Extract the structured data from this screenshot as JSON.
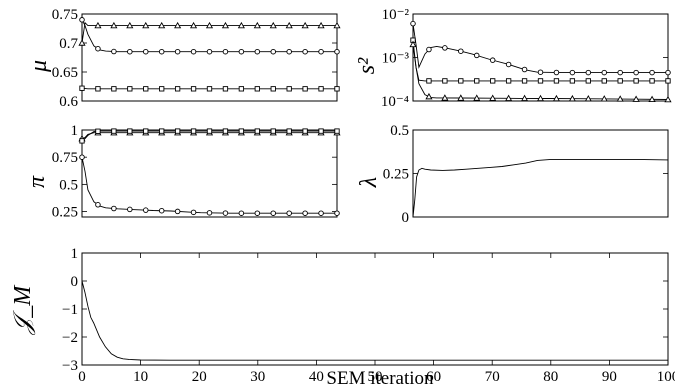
{
  "chart_data": [
    {
      "type": "line",
      "panel": "mu",
      "ylabel": "μ",
      "x_range": [
        0,
        43
      ],
      "ylim": [
        0.6,
        0.75
      ],
      "yticks": [
        0.6,
        0.65,
        0.7,
        0.75
      ],
      "ytick_labels": [
        "0.6",
        "0.65",
        "0.7",
        "0.75"
      ],
      "series": [
        {
          "marker": "triangle",
          "x": [
            0,
            0.5,
            1,
            2,
            4,
            7,
            10,
            15,
            20,
            25,
            30,
            35,
            40,
            43
          ],
          "y": [
            0.7,
            0.735,
            0.73,
            0.73,
            0.73,
            0.73,
            0.73,
            0.73,
            0.73,
            0.73,
            0.73,
            0.73,
            0.73,
            0.73
          ]
        },
        {
          "marker": "circle",
          "x": [
            0,
            0.5,
            1,
            2,
            3,
            4,
            6,
            8,
            10,
            15,
            20,
            25,
            30,
            35,
            40,
            43
          ],
          "y": [
            0.74,
            0.73,
            0.715,
            0.695,
            0.688,
            0.686,
            0.685,
            0.685,
            0.685,
            0.685,
            0.685,
            0.685,
            0.685,
            0.685,
            0.685,
            0.685
          ]
        },
        {
          "marker": "square",
          "x": [
            0,
            1,
            5,
            10,
            15,
            20,
            25,
            30,
            35,
            40,
            43
          ],
          "y": [
            0.622,
            0.621,
            0.621,
            0.621,
            0.621,
            0.621,
            0.621,
            0.621,
            0.621,
            0.621,
            0.621
          ]
        }
      ]
    },
    {
      "type": "line",
      "panel": "s2",
      "ylabel": "s²",
      "yscale": "log",
      "x_range": [
        57,
        100
      ],
      "ylim": [
        0.0001,
        0.01
      ],
      "yticks": [
        0.0001,
        0.001,
        0.01
      ],
      "ytick_labels": [
        "10⁻⁴",
        "10⁻³",
        "10⁻²"
      ],
      "series": [
        {
          "marker": "circle",
          "x": [
            57,
            57.5,
            58,
            59,
            60,
            61,
            62,
            63,
            65,
            67,
            70,
            73,
            76,
            78,
            82,
            86,
            90,
            95,
            100
          ],
          "y": [
            0.006,
            0.002,
            0.0006,
            0.0012,
            0.0017,
            0.0018,
            0.0017,
            0.0016,
            0.0014,
            0.0012,
            0.0009,
            0.0007,
            0.00052,
            0.00046,
            0.00045,
            0.00045,
            0.00045,
            0.00045,
            0.00045
          ]
        },
        {
          "marker": "square",
          "x": [
            57,
            57.5,
            58,
            59,
            60,
            65,
            70,
            75,
            80,
            85,
            90,
            95,
            100
          ],
          "y": [
            0.0025,
            0.0006,
            0.0003,
            0.00029,
            0.00029,
            0.00029,
            0.00029,
            0.00029,
            0.00029,
            0.00029,
            0.00029,
            0.00029,
            0.00029
          ]
        },
        {
          "marker": "triangle",
          "x": [
            57,
            57.5,
            58,
            59,
            60,
            61,
            65,
            70,
            75,
            80,
            85,
            90,
            95,
            100
          ],
          "y": [
            0.002,
            0.0006,
            0.00025,
            0.00014,
            0.00012,
            0.000118,
            0.000117,
            0.000116,
            0.000115,
            0.000114,
            0.000113,
            0.000112,
            0.00011,
            0.000108
          ]
        }
      ]
    },
    {
      "type": "line",
      "panel": "pi",
      "ylabel": "π",
      "x_range": [
        0,
        43
      ],
      "ylim": [
        0.2,
        1.0
      ],
      "yticks": [
        0.25,
        0.5,
        0.75,
        1
      ],
      "ytick_labels": [
        "0.25",
        "0.5",
        "0.75",
        "1"
      ],
      "series": [
        {
          "marker": "triangle",
          "x": [
            0,
            0.5,
            1,
            2,
            3,
            5,
            10,
            15,
            20,
            25,
            30,
            35,
            40,
            43
          ],
          "y": [
            0.92,
            0.93,
            0.96,
            0.975,
            0.975,
            0.975,
            0.975,
            0.975,
            0.975,
            0.975,
            0.975,
            0.975,
            0.975,
            0.975
          ]
        },
        {
          "marker": "square",
          "x": [
            0,
            0.5,
            1,
            2,
            3,
            5,
            10,
            15,
            20,
            25,
            30,
            35,
            40,
            43
          ],
          "y": [
            0.9,
            0.92,
            0.95,
            0.985,
            0.99,
            0.99,
            0.99,
            0.99,
            0.99,
            0.99,
            0.99,
            0.99,
            0.99,
            0.99
          ]
        },
        {
          "marker": "circle",
          "x": [
            0,
            0.5,
            1,
            2,
            3,
            4,
            6,
            8,
            10,
            12,
            15,
            18,
            20,
            25,
            30,
            35,
            40,
            43
          ],
          "y": [
            0.75,
            0.62,
            0.45,
            0.34,
            0.3,
            0.285,
            0.275,
            0.27,
            0.265,
            0.26,
            0.255,
            0.245,
            0.24,
            0.235,
            0.235,
            0.235,
            0.235,
            0.235
          ]
        }
      ]
    },
    {
      "type": "line",
      "panel": "lambda",
      "ylabel": "λ",
      "x_range": [
        57,
        100
      ],
      "ylim": [
        0,
        0.5
      ],
      "yticks": [
        0,
        0.25,
        0.5
      ],
      "ytick_labels": [
        "0",
        "0.25",
        "0.5"
      ],
      "series": [
        {
          "marker": "none",
          "x": [
            57,
            57.3,
            57.6,
            58,
            58.5,
            59,
            60,
            62,
            64,
            66,
            68,
            70,
            72,
            74,
            76,
            78,
            80,
            84,
            88,
            92,
            96,
            100
          ],
          "y": [
            0.0,
            0.1,
            0.23,
            0.27,
            0.28,
            0.275,
            0.27,
            0.268,
            0.27,
            0.275,
            0.28,
            0.285,
            0.29,
            0.3,
            0.31,
            0.325,
            0.33,
            0.33,
            0.33,
            0.33,
            0.33,
            0.328
          ]
        }
      ]
    },
    {
      "type": "line",
      "panel": "JM",
      "ylabel": "𝒥_M",
      "xlabel": "SEM iteration",
      "xlim": [
        0,
        100
      ],
      "xticks": [
        0,
        10,
        20,
        30,
        40,
        50,
        60,
        70,
        80,
        90,
        100
      ],
      "xtick_labels": [
        "0",
        "10",
        "20",
        "30",
        "40",
        "50",
        "60",
        "70",
        "80",
        "90",
        "100"
      ],
      "ylim": [
        -3,
        1
      ],
      "yticks": [
        -3,
        -2,
        -1,
        0,
        1
      ],
      "ytick_labels": [
        "−3",
        "−2",
        "−1",
        "0",
        "1"
      ],
      "series": [
        {
          "marker": "none",
          "x": [
            0,
            0.5,
            1,
            1.5,
            2,
            3,
            4,
            5,
            6,
            7,
            8,
            10,
            15,
            20,
            30,
            40,
            50,
            60,
            70,
            80,
            90,
            100
          ],
          "y": [
            0.0,
            -0.4,
            -0.9,
            -1.3,
            -1.5,
            -2.0,
            -2.35,
            -2.6,
            -2.72,
            -2.78,
            -2.8,
            -2.82,
            -2.83,
            -2.83,
            -2.83,
            -2.83,
            -2.83,
            -2.83,
            -2.83,
            -2.83,
            -2.83,
            -2.83
          ]
        }
      ]
    }
  ]
}
